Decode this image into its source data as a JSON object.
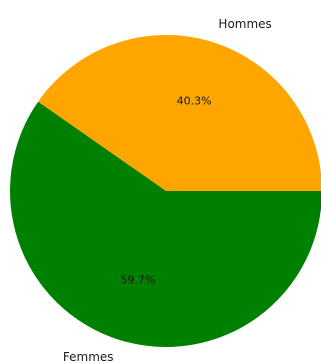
{
  "chart_data": {
    "type": "pie",
    "slices": [
      {
        "label": "Hommes",
        "value": 40.3,
        "pct_label": "40.3%",
        "color": "#FFA500"
      },
      {
        "label": "Femmes",
        "value": 59.7,
        "pct_label": "59.7%",
        "color": "#008000"
      }
    ],
    "start_angle_deg": 0,
    "direction": "counterclockwise"
  }
}
